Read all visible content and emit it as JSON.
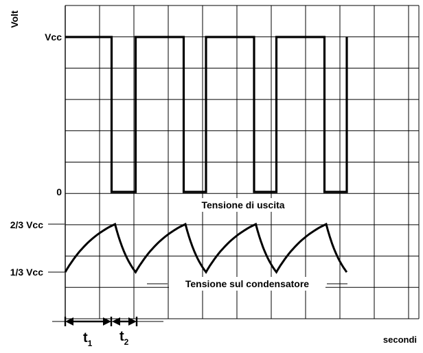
{
  "chart_data": {
    "type": "line",
    "title": "",
    "ylabel": "Volt",
    "xlabel": "secondi",
    "grid": true,
    "y_ticks": [
      {
        "key": "vcc",
        "label": "Vcc"
      },
      {
        "key": "zero",
        "label": "0"
      },
      {
        "key": "two_thirds",
        "label": "2/3 Vcc"
      },
      {
        "key": "one_third",
        "label": "1/3 Vcc"
      }
    ],
    "annotations": {
      "output": "Tensione di uscita",
      "capacitor": "Tensione sul condensatore"
    },
    "intervals": [
      {
        "name": "t1",
        "label": "t",
        "subscript": "1"
      },
      {
        "name": "t2",
        "label": "t",
        "subscript": "2"
      }
    ],
    "series": [
      {
        "name": "Tensione di uscita",
        "kind": "square",
        "high_label": "Vcc",
        "low_label": "0",
        "points": [
          [
            0,
            1
          ],
          [
            1.35,
            1
          ],
          [
            1.35,
            0
          ],
          [
            2.05,
            0
          ],
          [
            2.05,
            1
          ],
          [
            3.45,
            1
          ],
          [
            3.45,
            0
          ],
          [
            4.1,
            0
          ],
          [
            4.1,
            1
          ],
          [
            5.5,
            1
          ],
          [
            5.5,
            0
          ],
          [
            6.15,
            0
          ],
          [
            6.15,
            1
          ],
          [
            7.55,
            1
          ],
          [
            7.55,
            0
          ],
          [
            8.2,
            0
          ],
          [
            8.2,
            1
          ]
        ]
      },
      {
        "name": "Tensione sul condensatore",
        "kind": "charge-discharge",
        "high_label": "2/3 Vcc",
        "low_label": "1/3 Vcc",
        "charge_period": 1.45,
        "discharge_period": 0.6,
        "cycles": 4,
        "last_cycle_charges": false
      }
    ],
    "grid_columns": 10,
    "x_max": 10.3
  }
}
